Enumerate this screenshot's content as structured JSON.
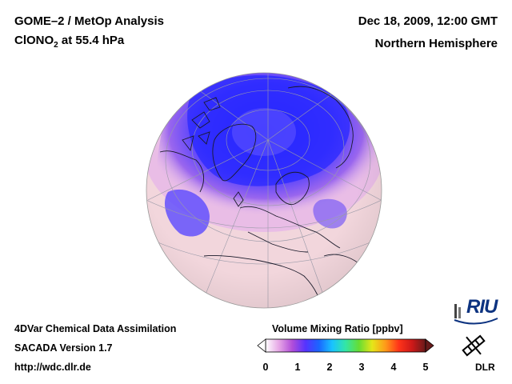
{
  "header": {
    "title_line1": "GOME–2 / MetOp Analysis",
    "title_line2_species": "ClONO",
    "title_line2_sub": "2",
    "title_line2_rest": " at 55.4 hPa",
    "date": "Dec 18, 2009, 12:00 GMT",
    "region": "Northern Hemisphere"
  },
  "footer": {
    "line1": "4DVar Chemical Data Assimilation",
    "line2": "SACADA Version 1.7",
    "line3": "http://wdc.dlr.de"
  },
  "colorbar": {
    "title": "Volume Mixing Ratio [ppbv]",
    "min": 0,
    "max": 5,
    "ticks": [
      "0",
      "1",
      "2",
      "3",
      "4",
      "5"
    ],
    "colors": [
      "#ffffff",
      "#e6a6e6",
      "#b14dd9",
      "#5533ff",
      "#1a66ff",
      "#19c4ff",
      "#33e6a6",
      "#66dd33",
      "#e6e619",
      "#ff9919",
      "#ff3319",
      "#cc1919",
      "#661a1a"
    ]
  },
  "logos": {
    "riu": "RIU",
    "dlr": "DLR"
  },
  "map": {
    "projection": "orthographic",
    "background_color": "#f2d6dc",
    "high_value_color": "#3a3bff"
  }
}
